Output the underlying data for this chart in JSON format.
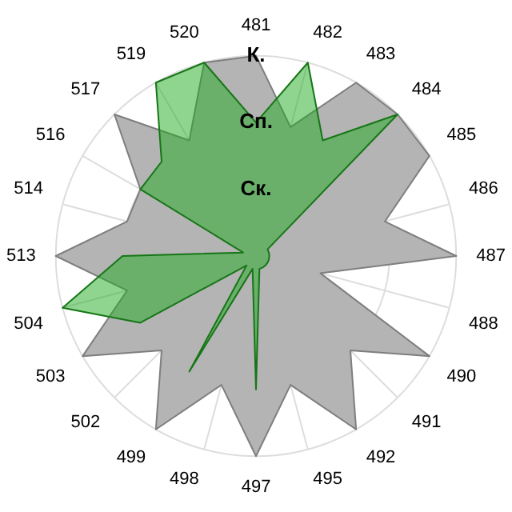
{
  "chart_data": {
    "type": "radar",
    "categories": [
      "481",
      "482",
      "483",
      "484",
      "485",
      "486",
      "487",
      "488",
      "490",
      "491",
      "492",
      "495",
      "497",
      "498",
      "499",
      "502",
      "503",
      "504",
      "513",
      "514",
      "516",
      "517",
      "519",
      "520"
    ],
    "series": [
      {
        "color": "#b4b4b4",
        "values": [
          3,
          2,
          3,
          3,
          3,
          2,
          3,
          1,
          3,
          2,
          3,
          2,
          3,
          2,
          3,
          2,
          3,
          2,
          3,
          2,
          2,
          3,
          2,
          3
        ]
      },
      {
        "color": "#1fa91f",
        "values": [
          2,
          3,
          2,
          3,
          0.2,
          0.2,
          0.2,
          0.2,
          0.2,
          0.2,
          0.2,
          0.2,
          2,
          0.2,
          2,
          0.2,
          2,
          3,
          2,
          0.2,
          2,
          2,
          3,
          3
        ]
      }
    ],
    "ylim": [
      0,
      3
    ],
    "yticks": [
      {
        "value": 1,
        "label": "Ск."
      },
      {
        "value": 2,
        "label": "Сп."
      },
      {
        "value": 3,
        "label": "К."
      }
    ],
    "grid": true,
    "legend": false,
    "marker": "none"
  }
}
